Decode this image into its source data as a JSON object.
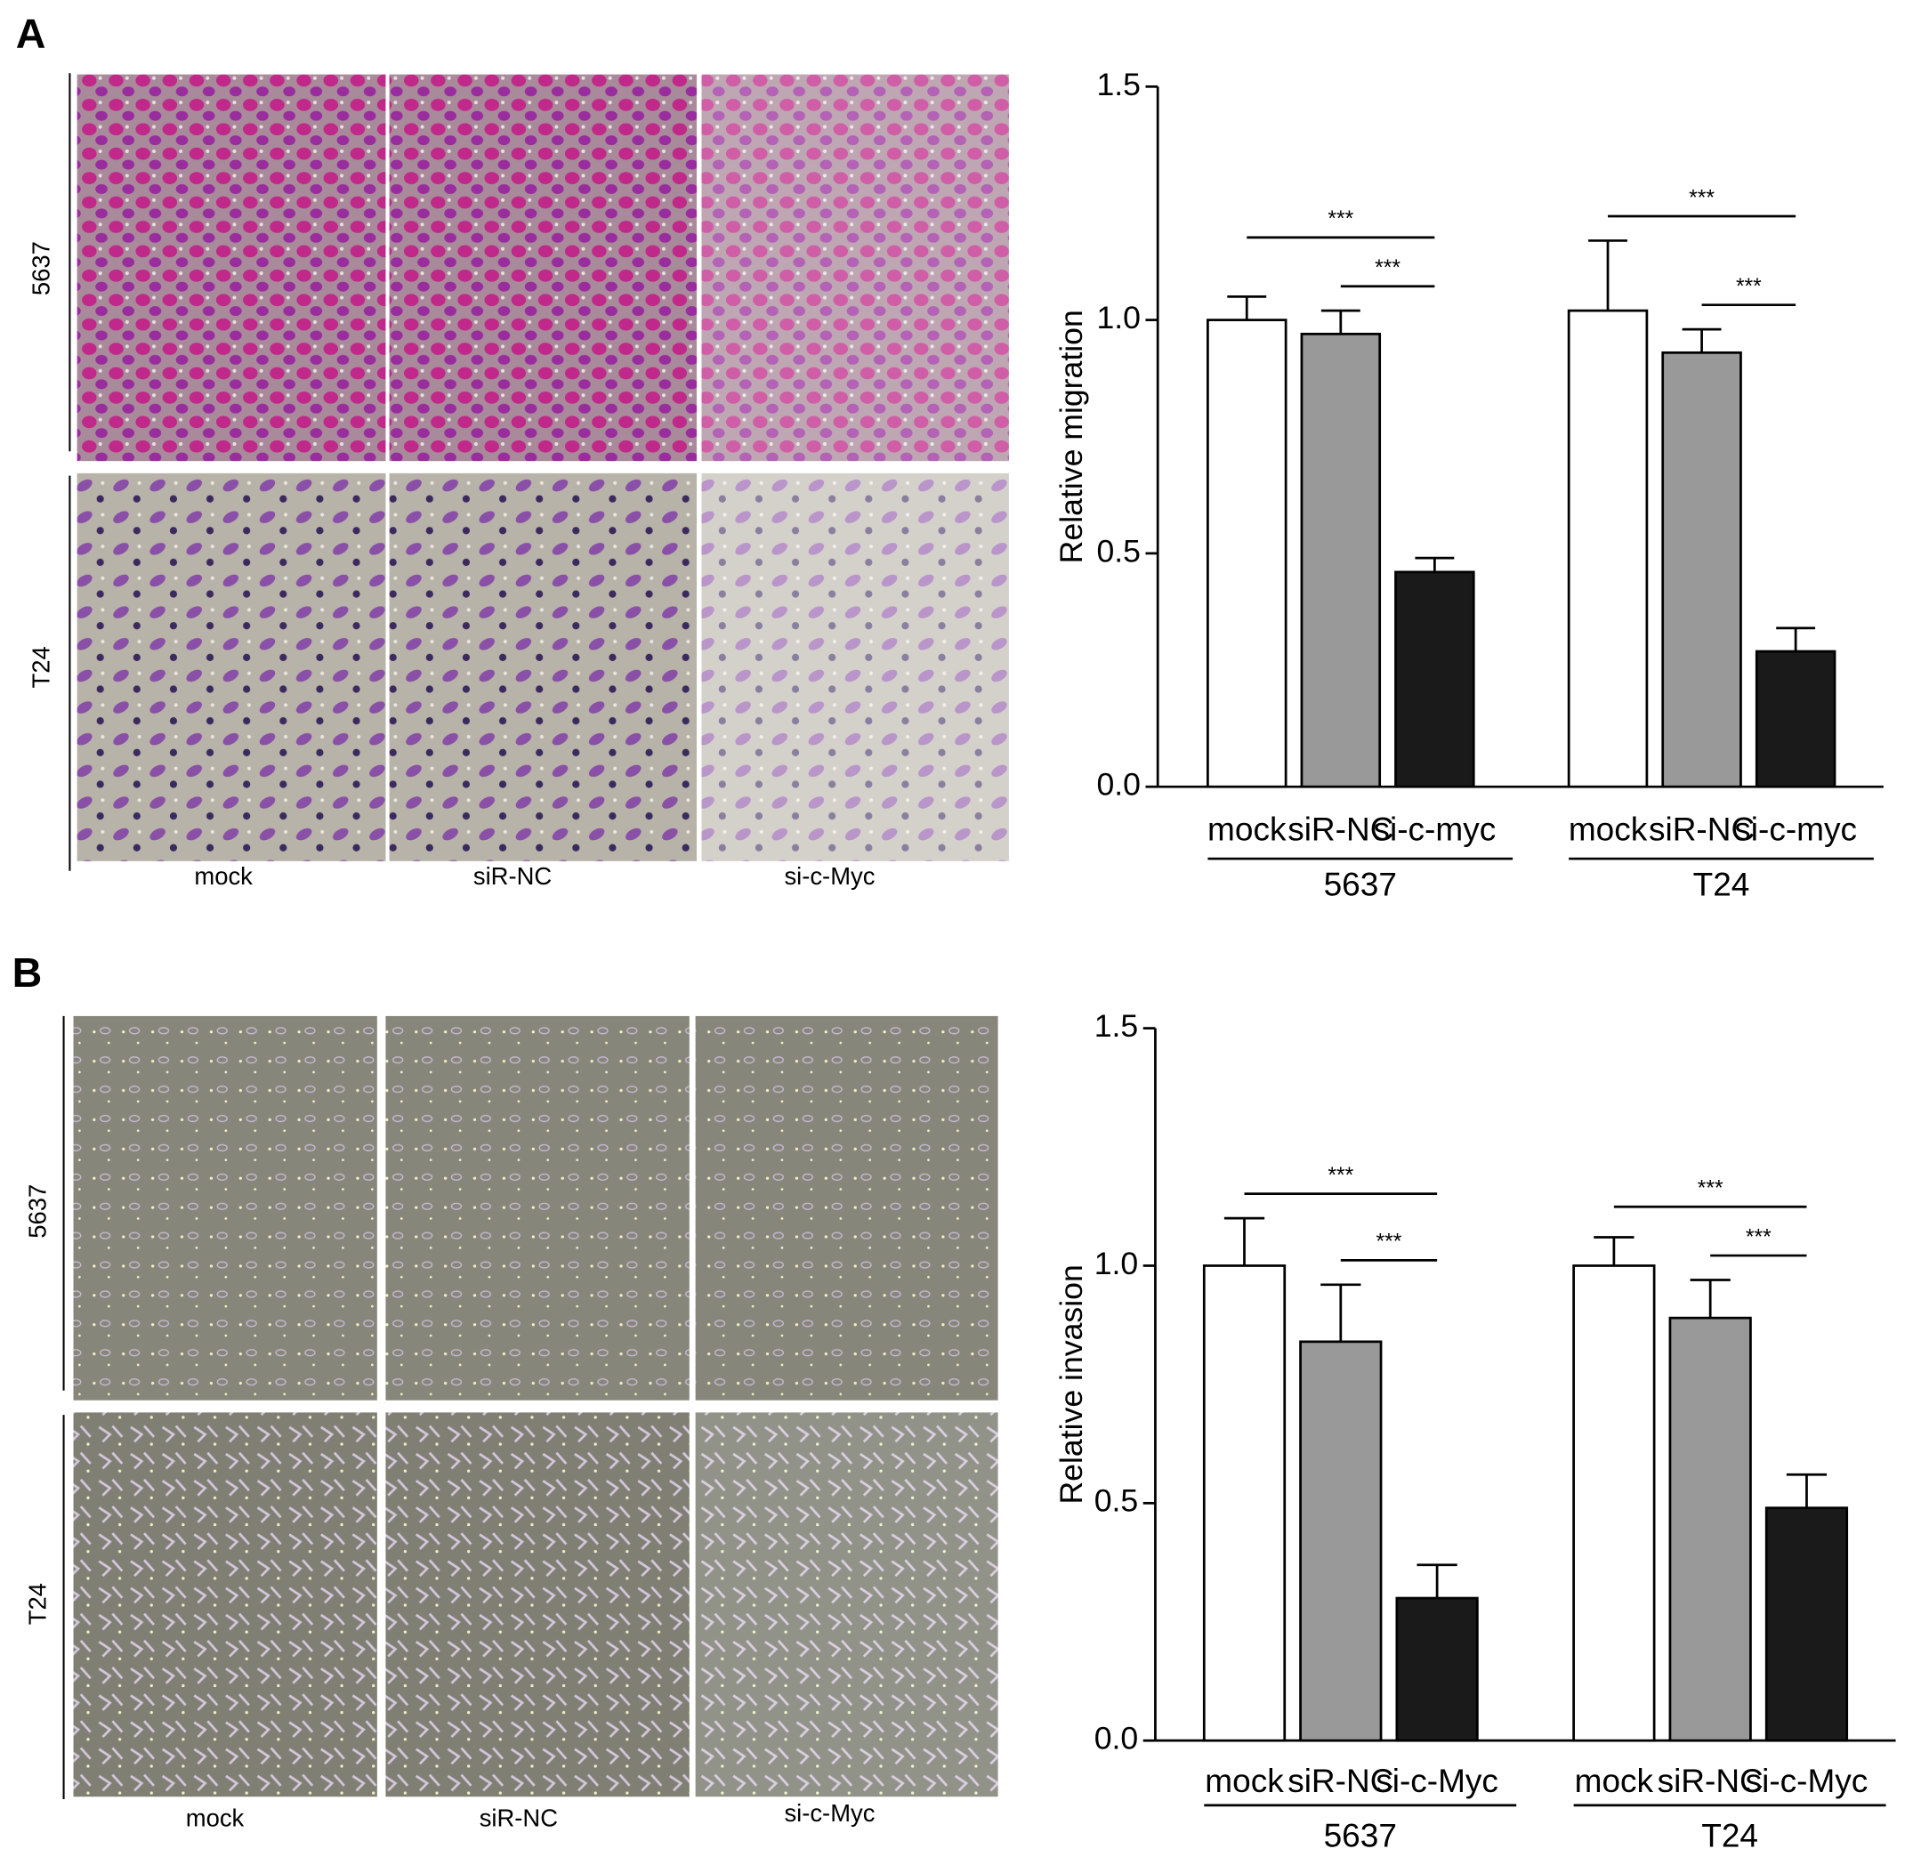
{
  "panels": [
    {
      "letter": "A",
      "row_labels": [
        "5637",
        "T24"
      ],
      "column_labels": [
        "mock",
        "siR-NC",
        "si-c-Myc"
      ]
    },
    {
      "letter": "B",
      "row_labels": [
        "5637",
        "T24"
      ],
      "column_labels": [
        "mock",
        "siR-NC",
        "si-c-Myc"
      ]
    }
  ],
  "chart_data": [
    {
      "type": "bar",
      "y_label": "Relative migration",
      "categories": [
        "5637",
        "T24"
      ],
      "series": [
        {
          "name": "mock",
          "color": "#ffffff",
          "values": [
            1.0,
            1.02
          ],
          "errors": [
            0.05,
            0.15
          ]
        },
        {
          "name": "siR-NC",
          "color": "#999999",
          "values": [
            0.97,
            0.93
          ],
          "errors": [
            0.05,
            0.05
          ]
        },
        {
          "name": "si-c-myc",
          "color": "#1a1a1a",
          "values": [
            0.46,
            0.29
          ],
          "errors": [
            0.03,
            0.05
          ]
        }
      ],
      "significance": [
        {
          "label": "***",
          "group": 0,
          "from": 1,
          "to": 2
        },
        {
          "label": "***",
          "group": 0,
          "from": 0,
          "to": 2
        },
        {
          "label": "***",
          "group": 1,
          "from": 1,
          "to": 2
        },
        {
          "label": "***",
          "group": 1,
          "from": 0,
          "to": 2
        }
      ],
      "ylim": [
        0,
        1.5
      ],
      "yticks": [
        {
          "value": 0,
          "label": "0.0"
        },
        0.5,
        {
          "value": 1,
          "label": "1.0"
        },
        1.5
      ]
    },
    {
      "type": "bar",
      "y_label": "Relative invasion",
      "categories": [
        "5637",
        "T24"
      ],
      "series": [
        {
          "name": "mock",
          "color": "#ffffff",
          "values": [
            1.0,
            1.0
          ],
          "errors": [
            0.1,
            0.06
          ]
        },
        {
          "name": "siR-NC",
          "color": "#999999",
          "values": [
            0.84,
            0.89
          ],
          "errors": [
            0.12,
            0.08
          ]
        },
        {
          "name": "si-c-Myc",
          "color": "#1a1a1a",
          "values": [
            0.3,
            0.49
          ],
          "errors": [
            0.07,
            0.07
          ]
        }
      ],
      "significance": [
        {
          "label": "***",
          "group": 0,
          "from": 1,
          "to": 2
        },
        {
          "label": "***",
          "group": 0,
          "from": 0,
          "to": 2
        },
        {
          "label": "***",
          "group": 1,
          "from": 1,
          "to": 2
        },
        {
          "label": "***",
          "group": 1,
          "from": 0,
          "to": 2
        }
      ],
      "ylim": [
        0,
        1.5
      ],
      "yticks": [
        {
          "value": 0,
          "label": "0.0"
        },
        0.5,
        {
          "value": 1,
          "label": "1.0"
        },
        1.5
      ]
    }
  ]
}
